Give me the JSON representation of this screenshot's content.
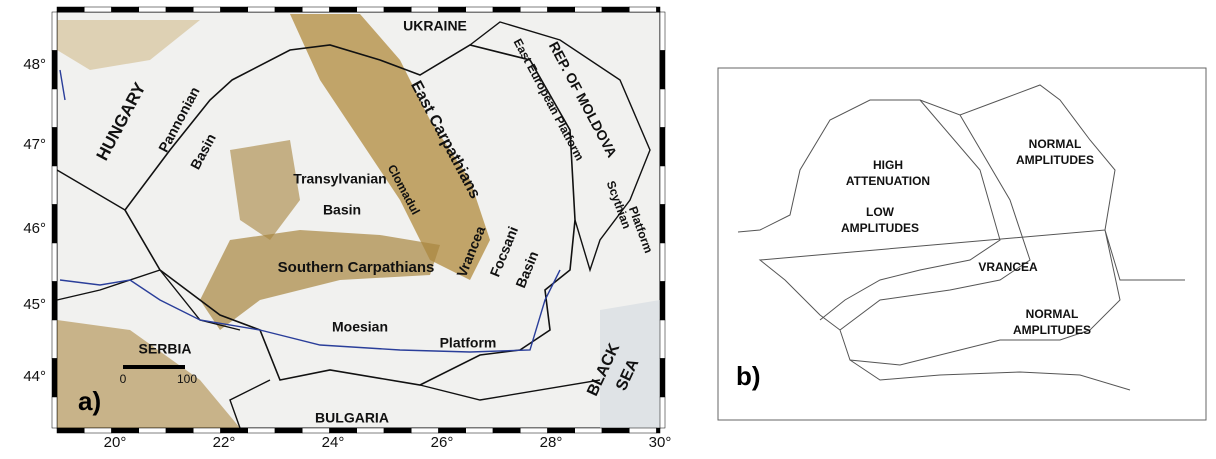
{
  "panel_a": {
    "panel_label": "a)",
    "lat_ticks": [
      "48°",
      "47°",
      "46°",
      "45°",
      "44°"
    ],
    "lon_ticks": [
      "20°",
      "22°",
      "24°",
      "26°",
      "28°",
      "30°"
    ],
    "scale": [
      "0",
      "100"
    ],
    "labels": [
      "UKRAINE",
      "HUNGARY",
      "Pannonian",
      "Basin",
      "East Carpathians",
      "REP. OF MOLDOVA",
      "East European Platform",
      "Clomadul",
      "Transylvanian",
      "Basin",
      "Southern Carpathians",
      "Vrancea",
      "Focsani",
      "Basin",
      "Moesian",
      "Platform",
      "SERBIA",
      "BULGARIA",
      "BLACK",
      "SEA",
      "Scythian",
      "Platform"
    ]
  },
  "panel_b": {
    "panel_label": "b)",
    "labels": [
      "HIGH",
      "ATTENUATION",
      "LOW",
      "AMPLITUDES",
      "NORMAL",
      "AMPLITUDES",
      "VRANCEA",
      "NORMAL",
      "AMPLITUDES"
    ]
  }
}
